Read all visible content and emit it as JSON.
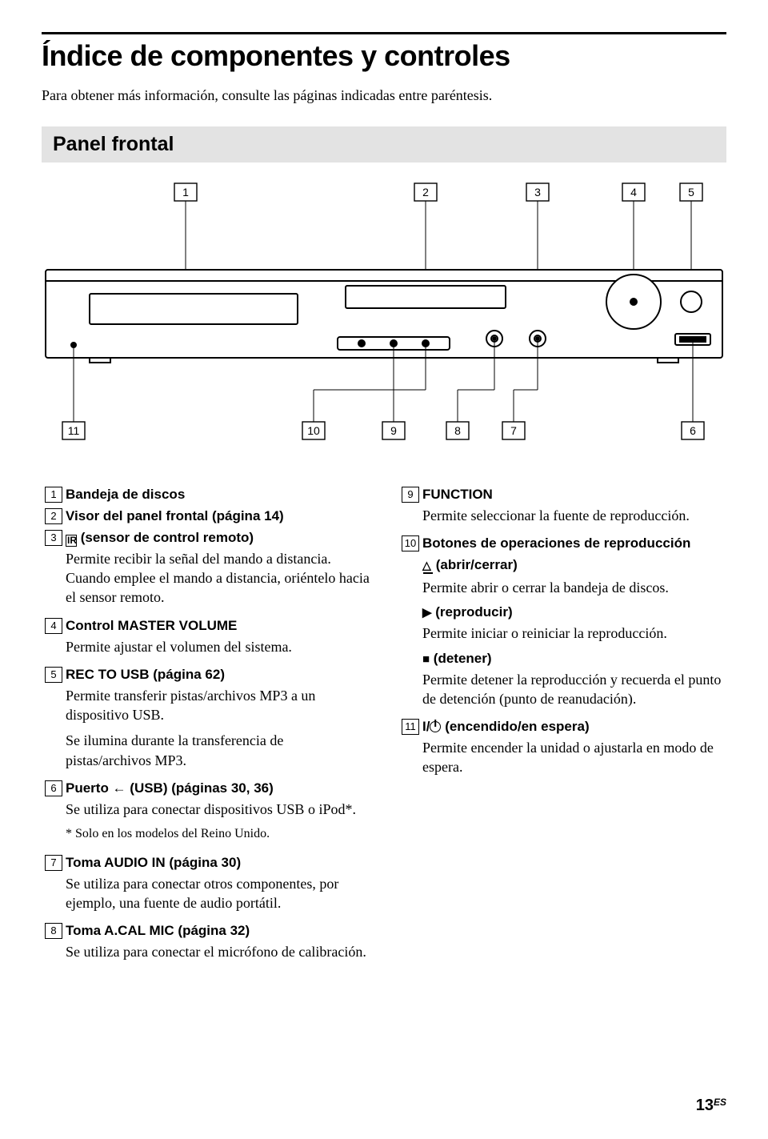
{
  "title": "Índice de componentes y controles",
  "subtitle": "Para obtener más información, consulte las páginas indicadas entre paréntesis.",
  "section": "Panel frontal",
  "diagram": {
    "top_labels": [
      "1",
      "2",
      "3",
      "4",
      "5"
    ],
    "bottom_labels": [
      "11",
      "10",
      "9",
      "8",
      "7",
      "6"
    ]
  },
  "left_items": [
    {
      "n": "1",
      "title": "Bandeja de discos"
    },
    {
      "n": "2",
      "title": "Visor del panel frontal (página 14)"
    },
    {
      "n": "3",
      "title_prefix_icon": "ir",
      "title": "(sensor de control remoto)",
      "desc": "Permite recibir la señal del mando a distancia. Cuando emplee el mando a distancia, oriéntelo hacia el sensor remoto."
    },
    {
      "n": "4",
      "title": "Control MASTER VOLUME",
      "desc": "Permite ajustar el volumen del sistema."
    },
    {
      "n": "5",
      "title": "REC TO USB (página 62)",
      "desc": "Permite transferir pistas/archivos MP3 a un dispositivo USB.",
      "desc2": "Se ilumina durante la transferencia de pistas/archivos MP3."
    },
    {
      "n": "6",
      "title": "Puerto ← (USB) (páginas 30, 36)",
      "desc": "Se utiliza para conectar dispositivos USB o iPod*.",
      "note": "* Solo en los modelos del Reino Unido."
    },
    {
      "n": "7",
      "title": "Toma AUDIO IN (página 30)",
      "desc": "Se utiliza para conectar otros componentes, por ejemplo, una fuente de audio portátil."
    },
    {
      "n": "8",
      "title": "Toma A.CAL MIC (página 32)",
      "desc": "Se utiliza para conectar el micrófono de calibración."
    }
  ],
  "right_items": [
    {
      "n": "9",
      "title": "FUNCTION",
      "desc": "Permite seleccionar la fuente de reproducción."
    },
    {
      "n": "10",
      "title": "Botones de operaciones de reproducción",
      "subs": [
        {
          "icon": "eject",
          "label": "(abrir/cerrar)",
          "desc": "Permite abrir o cerrar la bandeja de discos."
        },
        {
          "icon": "play",
          "label": "(reproducir)",
          "desc": "Permite iniciar o reiniciar la reproducción."
        },
        {
          "icon": "stop",
          "label": "(detener)",
          "desc": "Permite detener la reproducción y recuerda el punto de detención (punto de reanudación)."
        }
      ]
    },
    {
      "n": "11",
      "title_prefix": "I/",
      "title_power": true,
      "title": "(encendido/en espera)",
      "desc": "Permite encender la unidad o ajustarla en modo de espera."
    }
  ],
  "page_number": "13",
  "page_suffix": "ES"
}
